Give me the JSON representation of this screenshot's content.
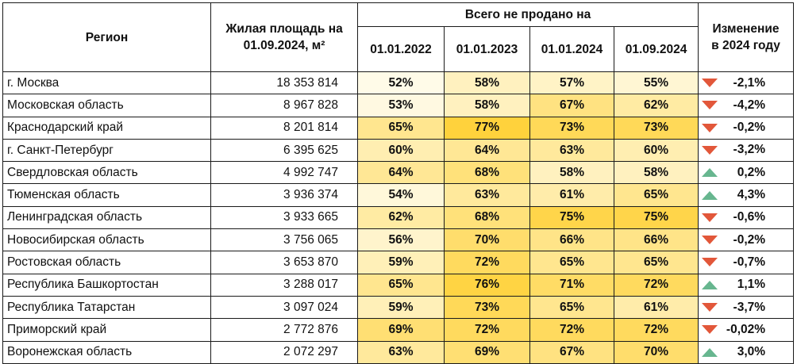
{
  "header": {
    "region": "Регион",
    "area": "Жилая площадь на 01.09.2024, м²",
    "unsold": "Всего не продано на",
    "change": "Изменение в 2024 году",
    "dates": [
      "01.01.2022",
      "01.01.2023",
      "01.01.2024",
      "01.09.2024"
    ]
  },
  "colors": {
    "down_arrow": "#e2573a",
    "up_arrow": "#67b68f",
    "heat_low": "#fffbe8",
    "heat_high": "#ffd23c"
  },
  "rows": [
    {
      "region": "г. Москва",
      "area": "18 353 814",
      "pct": [
        "52%",
        "58%",
        "57%",
        "55%"
      ],
      "dir": "down",
      "change": "-2,1%"
    },
    {
      "region": "Московская область",
      "area": "8 967 828",
      "pct": [
        "53%",
        "58%",
        "67%",
        "62%"
      ],
      "dir": "down",
      "change": "-4,2%"
    },
    {
      "region": "Краснодарский край",
      "area": "8 201 814",
      "pct": [
        "65%",
        "77%",
        "73%",
        "73%"
      ],
      "dir": "down",
      "change": "-0,2%"
    },
    {
      "region": "г. Санкт-Петербург",
      "area": "6 395 625",
      "pct": [
        "60%",
        "64%",
        "63%",
        "60%"
      ],
      "dir": "down",
      "change": "-3,2%"
    },
    {
      "region": "Свердловская область",
      "area": "4 992 747",
      "pct": [
        "64%",
        "68%",
        "58%",
        "58%"
      ],
      "dir": "up",
      "change": "0,2%"
    },
    {
      "region": "Тюменская область",
      "area": "3 936 374",
      "pct": [
        "54%",
        "63%",
        "61%",
        "65%"
      ],
      "dir": "up",
      "change": "4,3%"
    },
    {
      "region": "Ленинградская область",
      "area": "3 933 665",
      "pct": [
        "62%",
        "68%",
        "75%",
        "75%"
      ],
      "dir": "down",
      "change": "-0,6%"
    },
    {
      "region": "Новосибирская область",
      "area": "3 756 065",
      "pct": [
        "56%",
        "70%",
        "66%",
        "66%"
      ],
      "dir": "down",
      "change": "-0,2%"
    },
    {
      "region": "Ростовская область",
      "area": "3 653 870",
      "pct": [
        "59%",
        "72%",
        "65%",
        "65%"
      ],
      "dir": "down",
      "change": "-0,7%"
    },
    {
      "region": "Республика Башкортостан",
      "area": "3 288 017",
      "pct": [
        "65%",
        "76%",
        "71%",
        "72%"
      ],
      "dir": "up",
      "change": "1,1%"
    },
    {
      "region": "Республика Татарстан",
      "area": "3 097 024",
      "pct": [
        "59%",
        "73%",
        "65%",
        "61%"
      ],
      "dir": "down",
      "change": "-3,7%"
    },
    {
      "region": "Приморский край",
      "area": "2 772 876",
      "pct": [
        "69%",
        "72%",
        "72%",
        "72%"
      ],
      "dir": "down",
      "change": "-0,02%"
    },
    {
      "region": "Воронежская область",
      "area": "2 072 297",
      "pct": [
        "63%",
        "69%",
        "67%",
        "70%"
      ],
      "dir": "up",
      "change": "3,0%"
    }
  ]
}
